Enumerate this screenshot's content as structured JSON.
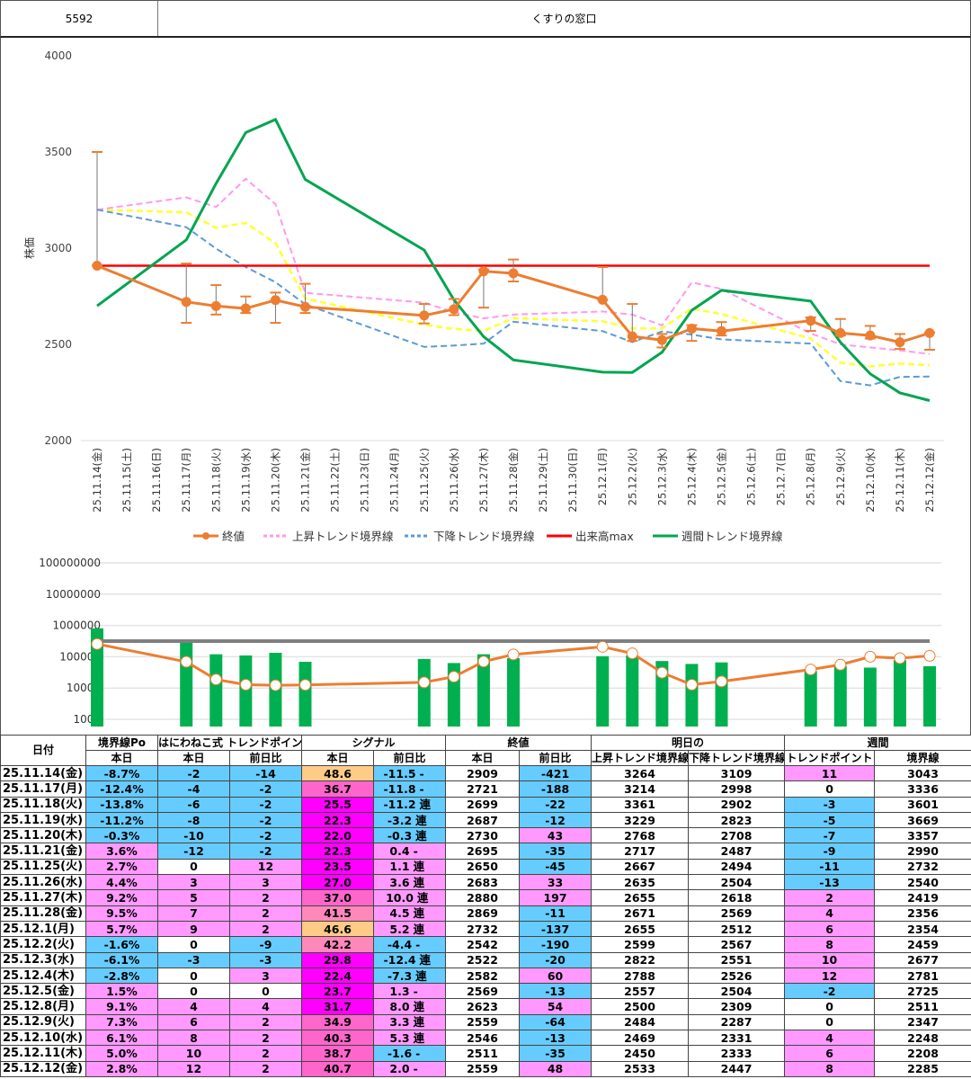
{
  "header": {
    "code": "5592",
    "name": "くすりの窓口"
  },
  "chart_data": [
    {
      "type": "line",
      "title": "",
      "ylabel": "株価",
      "ylim": [
        2000,
        4000
      ],
      "yticks": [
        "4000",
        "3500",
        "3000",
        "2500",
        "2000"
      ],
      "dates": [
        "25.11.14(金)",
        "25.11.15(土)",
        "25.11.16(日)",
        "25.11.17(月)",
        "25.11.18(火)",
        "25.11.19(水)",
        "25.11.20(木)",
        "25.11.21(金)",
        "25.11.22(土)",
        "25.11.23(日)",
        "25.11.24(月)",
        "25.11.25(火)",
        "25.11.26(水)",
        "25.11.27(木)",
        "25.11.28(金)",
        "25.11.29(土)",
        "25.11.30(日)",
        "25.12.1(月)",
        "25.12.2(火)",
        "25.12.3(水)",
        "25.12.4(木)",
        "25.12.5(金)",
        "25.12.6(土)",
        "25.12.7(日)",
        "25.12.8(月)",
        "25.12.9(火)",
        "25.12.10(水)",
        "25.12.11(木)",
        "25.12.12(金)"
      ],
      "trading_index": [
        0,
        3,
        4,
        5,
        6,
        7,
        11,
        12,
        13,
        14,
        17,
        18,
        19,
        20,
        21,
        24,
        25,
        26,
        27,
        28
      ],
      "legend": [
        "終値",
        "上昇トレンド境界線",
        "下降トレンド境界線",
        "出来高max",
        "週間トレンド境界線"
      ],
      "legend_position": "bottom",
      "colors": {
        "close": "#ed7d31",
        "upper": "#ff99ee",
        "lower": "#5b9bd5",
        "mid": "#ffff33",
        "max": "#ff0000",
        "weekly": "#00a550"
      },
      "series": {
        "close": [
          2909,
          2721,
          2699,
          2687,
          2730,
          2695,
          2650,
          2683,
          2880,
          2869,
          2732,
          2542,
          2522,
          2582,
          2569,
          2623,
          2559,
          2546,
          2511,
          2559
        ],
        "high": [
          3500,
          2920,
          2808,
          2749,
          2769,
          2815,
          2710,
          2736,
          2889,
          2941,
          2902,
          2710,
          2554,
          2600,
          2616,
          2640,
          2632,
          2596,
          2554,
          2562
        ],
        "low": [
          2909,
          2612,
          2655,
          2663,
          2612,
          2663,
          2609,
          2652,
          2691,
          2827,
          2732,
          2518,
          2484,
          2518,
          2546,
          2570,
          2546,
          2530,
          2476,
          2472
        ],
        "upper": [
          3200,
          3264,
          3214,
          3361,
          3229,
          2768,
          2717,
          2667,
          2635,
          2655,
          2671,
          2655,
          2599,
          2822,
          2788,
          2557,
          2500,
          2484,
          2469,
          2450
        ],
        "lower": [
          3200,
          3109,
          2998,
          2902,
          2823,
          2708,
          2487,
          2494,
          2504,
          2618,
          2569,
          2512,
          2567,
          2551,
          2526,
          2504,
          2309,
          2287,
          2331,
          2333
        ],
        "max": 2909,
        "weekly": [
          2700,
          3043,
          3336,
          3601,
          3669,
          3357,
          2990,
          2732,
          2540,
          2419,
          2356,
          2354,
          2459,
          2677,
          2781,
          2725,
          2511,
          2347,
          2248,
          2208
        ]
      }
    },
    {
      "type": "bar",
      "scale": "log",
      "yticks": [
        "100000000",
        "10000000",
        "1000000",
        "100000",
        "10000",
        "1000"
      ],
      "volume": [
        810000,
        350000,
        120000,
        110000,
        134000,
        69000,
        85000,
        63000,
        120000,
        90000,
        104000,
        110000,
        73000,
        59000,
        66000,
        35000,
        51000,
        45000,
        78000,
        50000
      ],
      "average": [
        256000,
        69000,
        18800,
        12800,
        12300,
        12600,
        15200,
        23000,
        70000,
        118000,
        208000,
        128000,
        31000,
        12800,
        16200,
        39000,
        55700,
        100000,
        90000,
        107000
      ],
      "max_line": 316000
    }
  ],
  "table": {
    "headers": {
      "date": "日付",
      "po": "境界線Po",
      "tp": "はにわねこ式 トレンドポイント",
      "signal": "シグナル",
      "close": "終値",
      "tomorrow": "明日の",
      "weekly": "週間",
      "today": "本日",
      "diff": "前日比",
      "up": "上昇トレンド境界線",
      "down": "下降トレンド境界線",
      "wtp": "トレンドポイント",
      "wline": "境界線"
    },
    "rows": [
      {
        "date": "25.11.14(金)",
        "po": "-8.7%",
        "tp": "-2",
        "tpd": "-14",
        "sig": "48.6",
        "sigd": "-11.5",
        "sigm": "-",
        "close": "2909",
        "cd": "-421",
        "up": "3264",
        "down": "3109",
        "wtp": "11",
        "wline": "3043",
        "c": [
          "b",
          "b",
          "b",
          "o",
          "b",
          "b",
          "p"
        ]
      },
      {
        "date": "25.11.17(月)",
        "po": "-12.4%",
        "tp": "-4",
        "tpd": "-2",
        "sig": "36.7",
        "sigd": "-11.8",
        "sigm": "-",
        "close": "2721",
        "cd": "-188",
        "up": "3214",
        "down": "2998",
        "wtp": "0",
        "wline": "3336",
        "c": [
          "b",
          "b",
          "b",
          "h",
          "b",
          "b",
          "w"
        ]
      },
      {
        "date": "25.11.18(火)",
        "po": "-13.8%",
        "tp": "-6",
        "tpd": "-2",
        "sig": "25.5",
        "sigd": "-11.2",
        "sigm": "連",
        "close": "2699",
        "cd": "-22",
        "up": "3361",
        "down": "2902",
        "wtp": "-3",
        "wline": "3601",
        "c": [
          "b",
          "b",
          "b",
          "m",
          "b",
          "b",
          "b"
        ]
      },
      {
        "date": "25.11.19(水)",
        "po": "-11.2%",
        "tp": "-8",
        "tpd": "-2",
        "sig": "22.3",
        "sigd": "-3.2",
        "sigm": "連",
        "close": "2687",
        "cd": "-12",
        "up": "3229",
        "down": "2823",
        "wtp": "-5",
        "wline": "3669",
        "c": [
          "b",
          "b",
          "b",
          "m",
          "b",
          "b",
          "b"
        ]
      },
      {
        "date": "25.11.20(木)",
        "po": "-0.3%",
        "tp": "-10",
        "tpd": "-2",
        "sig": "22.0",
        "sigd": "-0.3",
        "sigm": "連",
        "close": "2730",
        "cd": "43",
        "up": "2768",
        "down": "2708",
        "wtp": "-7",
        "wline": "3357",
        "c": [
          "b",
          "b",
          "b",
          "m",
          "b",
          "p",
          "b"
        ]
      },
      {
        "date": "25.11.21(金)",
        "po": "3.6%",
        "tp": "-12",
        "tpd": "-2",
        "sig": "22.3",
        "sigd": "0.4",
        "sigm": "-",
        "close": "2695",
        "cd": "-35",
        "up": "2717",
        "down": "2487",
        "wtp": "-9",
        "wline": "2990",
        "c": [
          "p",
          "b",
          "b",
          "m",
          "p",
          "b",
          "b"
        ]
      },
      {
        "date": "25.11.25(火)",
        "po": "2.7%",
        "tp": "0",
        "tpd": "12",
        "sig": "23.5",
        "sigd": "1.1",
        "sigm": "連",
        "close": "2650",
        "cd": "-45",
        "up": "2667",
        "down": "2494",
        "wtp": "-11",
        "wline": "2732",
        "c": [
          "p",
          "w",
          "p",
          "m",
          "p",
          "b",
          "b"
        ]
      },
      {
        "date": "25.11.26(水)",
        "po": "4.4%",
        "tp": "3",
        "tpd": "3",
        "sig": "27.0",
        "sigd": "3.6",
        "sigm": "連",
        "close": "2683",
        "cd": "33",
        "up": "2635",
        "down": "2504",
        "wtp": "-13",
        "wline": "2540",
        "c": [
          "p",
          "p",
          "p",
          "m",
          "p",
          "p",
          "b"
        ]
      },
      {
        "date": "25.11.27(木)",
        "po": "9.2%",
        "tp": "5",
        "tpd": "2",
        "sig": "37.0",
        "sigd": "10.0",
        "sigm": "連",
        "close": "2880",
        "cd": "197",
        "up": "2655",
        "down": "2618",
        "wtp": "2",
        "wline": "2419",
        "c": [
          "p",
          "p",
          "p",
          "h",
          "p",
          "p",
          "p"
        ]
      },
      {
        "date": "25.11.28(金)",
        "po": "9.5%",
        "tp": "7",
        "tpd": "2",
        "sig": "41.5",
        "sigd": "4.5",
        "sigm": "連",
        "close": "2869",
        "cd": "-11",
        "up": "2671",
        "down": "2569",
        "wtp": "4",
        "wline": "2356",
        "c": [
          "p",
          "p",
          "p",
          "h2",
          "p",
          "b",
          "p"
        ]
      },
      {
        "date": "25.12.1(月)",
        "po": "5.7%",
        "tp": "9",
        "tpd": "2",
        "sig": "46.6",
        "sigd": "5.2",
        "sigm": "連",
        "close": "2732",
        "cd": "-137",
        "up": "2655",
        "down": "2512",
        "wtp": "6",
        "wline": "2354",
        "c": [
          "p",
          "p",
          "p",
          "o",
          "p",
          "b",
          "p"
        ]
      },
      {
        "date": "25.12.2(火)",
        "po": "-1.6%",
        "tp": "0",
        "tpd": "-9",
        "sig": "42.2",
        "sigd": "-4.4",
        "sigm": "-",
        "close": "2542",
        "cd": "-190",
        "up": "2599",
        "down": "2567",
        "wtp": "8",
        "wline": "2459",
        "c": [
          "b",
          "w",
          "b",
          "h2",
          "b",
          "b",
          "p"
        ]
      },
      {
        "date": "25.12.3(水)",
        "po": "-6.1%",
        "tp": "-3",
        "tpd": "-3",
        "sig": "29.8",
        "sigd": "-12.4",
        "sigm": "連",
        "close": "2522",
        "cd": "-20",
        "up": "2822",
        "down": "2551",
        "wtp": "10",
        "wline": "2677",
        "c": [
          "b",
          "b",
          "b",
          "m",
          "b",
          "b",
          "p"
        ]
      },
      {
        "date": "25.12.4(木)",
        "po": "-2.8%",
        "tp": "0",
        "tpd": "3",
        "sig": "22.4",
        "sigd": "-7.3",
        "sigm": "連",
        "close": "2582",
        "cd": "60",
        "up": "2788",
        "down": "2526",
        "wtp": "12",
        "wline": "2781",
        "c": [
          "b",
          "w",
          "p",
          "m",
          "b",
          "p",
          "p"
        ]
      },
      {
        "date": "25.12.5(金)",
        "po": "1.5%",
        "tp": "0",
        "tpd": "0",
        "sig": "23.7",
        "sigd": "1.3",
        "sigm": "-",
        "close": "2569",
        "cd": "-13",
        "up": "2557",
        "down": "2504",
        "wtp": "-2",
        "wline": "2725",
        "c": [
          "p",
          "w",
          "w",
          "m",
          "p",
          "b",
          "b"
        ]
      },
      {
        "date": "25.12.8(月)",
        "po": "9.1%",
        "tp": "4",
        "tpd": "4",
        "sig": "31.7",
        "sigd": "8.0",
        "sigm": "連",
        "close": "2623",
        "cd": "54",
        "up": "2500",
        "down": "2309",
        "wtp": "0",
        "wline": "2511",
        "c": [
          "p",
          "p",
          "p",
          "m",
          "p",
          "p",
          "w"
        ]
      },
      {
        "date": "25.12.9(火)",
        "po": "7.3%",
        "tp": "6",
        "tpd": "2",
        "sig": "34.9",
        "sigd": "3.3",
        "sigm": "連",
        "close": "2559",
        "cd": "-64",
        "up": "2484",
        "down": "2287",
        "wtp": "0",
        "wline": "2347",
        "c": [
          "p",
          "p",
          "p",
          "h",
          "p",
          "b",
          "w"
        ]
      },
      {
        "date": "25.12.10(水)",
        "po": "6.1%",
        "tp": "8",
        "tpd": "2",
        "sig": "40.3",
        "sigd": "5.3",
        "sigm": "連",
        "close": "2546",
        "cd": "-13",
        "up": "2469",
        "down": "2331",
        "wtp": "4",
        "wline": "2248",
        "c": [
          "p",
          "p",
          "p",
          "h",
          "p",
          "b",
          "p"
        ]
      },
      {
        "date": "25.12.11(木)",
        "po": "5.0%",
        "tp": "10",
        "tpd": "2",
        "sig": "38.7",
        "sigd": "-1.6",
        "sigm": "-",
        "close": "2511",
        "cd": "-35",
        "up": "2450",
        "down": "2333",
        "wtp": "6",
        "wline": "2208",
        "c": [
          "p",
          "p",
          "p",
          "h",
          "b",
          "b",
          "p"
        ]
      },
      {
        "date": "25.12.12(金)",
        "po": "2.8%",
        "tp": "12",
        "tpd": "2",
        "sig": "40.7",
        "sigd": "2.0",
        "sigm": "-",
        "close": "2559",
        "cd": "48",
        "up": "2533",
        "down": "2447",
        "wtp": "8",
        "wline": "2285",
        "c": [
          "p",
          "p",
          "p",
          "h",
          "p",
          "p",
          "p"
        ]
      }
    ]
  }
}
